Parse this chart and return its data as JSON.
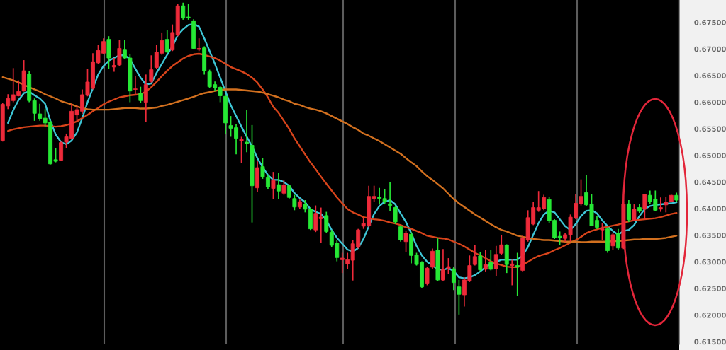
{
  "chart_data": {
    "type": "candlestick",
    "categories": [
      null,
      null,
      null,
      null,
      null,
      null,
      null,
      null,
      null,
      null,
      null,
      null,
      null,
      null,
      null,
      null,
      null,
      null,
      null,
      null,
      null,
      null,
      null,
      null,
      null,
      null,
      null,
      null,
      null,
      null,
      null,
      null,
      null,
      null,
      null,
      null,
      null,
      null,
      null,
      null,
      null,
      null,
      null,
      null,
      null,
      null,
      null,
      null,
      null,
      null,
      null,
      null,
      null,
      null,
      null,
      null,
      null,
      null,
      null,
      null,
      null,
      null,
      null,
      null,
      null,
      null,
      null,
      null,
      null,
      null,
      null,
      null,
      null,
      null,
      null,
      null,
      null,
      null,
      null,
      null,
      null,
      null,
      null,
      null,
      null,
      null,
      null,
      null,
      null,
      null,
      null,
      null,
      null,
      null,
      null,
      null,
      null,
      null,
      null,
      null,
      null,
      null,
      null,
      null,
      null,
      null,
      null,
      null,
      null,
      null,
      null,
      null,
      null,
      null,
      null,
      null,
      null,
      null,
      null,
      null,
      null,
      null,
      null,
      null,
      null,
      null,
      null,
      null
    ],
    "ohlc": [
      [
        0.6528,
        0.6598,
        0.6526,
        0.6596
      ],
      [
        0.6593,
        0.6615,
        0.6587,
        0.6607
      ],
      [
        0.6603,
        0.6664,
        0.66,
        0.6614
      ],
      [
        0.6612,
        0.6641,
        0.6611,
        0.662
      ],
      [
        0.6621,
        0.6679,
        0.662,
        0.6659
      ],
      [
        0.6653,
        0.6659,
        0.66,
        0.6603
      ],
      [
        0.6603,
        0.6607,
        0.6565,
        0.6579
      ],
      [
        0.6578,
        0.6597,
        0.6565,
        0.6569
      ],
      [
        0.657,
        0.6587,
        0.6554,
        0.6561
      ],
      [
        0.6563,
        0.6565,
        0.6483,
        0.6484
      ],
      [
        0.6492,
        0.6513,
        0.6487,
        0.6489
      ],
      [
        0.6491,
        0.6526,
        0.6489,
        0.6524
      ],
      [
        0.6525,
        0.6541,
        0.6513,
        0.6535
      ],
      [
        0.6532,
        0.6597,
        0.653,
        0.6583
      ],
      [
        0.6576,
        0.6594,
        0.6565,
        0.6586
      ],
      [
        0.6583,
        0.6624,
        0.6578,
        0.6614
      ],
      [
        0.6613,
        0.6663,
        0.6611,
        0.6638
      ],
      [
        0.6626,
        0.6692,
        0.6624,
        0.6676
      ],
      [
        0.6674,
        0.6707,
        0.6672,
        0.6697
      ],
      [
        0.6692,
        0.672,
        0.6691,
        0.6714
      ],
      [
        0.6718,
        0.6724,
        0.6663,
        0.6683
      ],
      [
        0.6666,
        0.6683,
        0.6657,
        0.6669
      ],
      [
        0.667,
        0.6717,
        0.6668,
        0.6701
      ],
      [
        0.6698,
        0.6717,
        0.6681,
        0.6683
      ],
      [
        0.6683,
        0.669,
        0.66,
        0.6621
      ],
      [
        0.6624,
        0.665,
        0.6615,
        0.6625
      ],
      [
        0.6617,
        0.6629,
        0.6598,
        0.6603
      ],
      [
        0.66,
        0.6652,
        0.6563,
        0.6633
      ],
      [
        0.6639,
        0.6688,
        0.6637,
        0.6661
      ],
      [
        0.6665,
        0.6708,
        0.6663,
        0.6694
      ],
      [
        0.6692,
        0.6731,
        0.6689,
        0.6716
      ],
      [
        0.6718,
        0.6736,
        0.6692,
        0.6694
      ],
      [
        0.6698,
        0.6746,
        0.6696,
        0.6731
      ],
      [
        0.6726,
        0.6785,
        0.6724,
        0.6781
      ],
      [
        0.6781,
        0.6787,
        0.6755,
        0.6758
      ],
      [
        0.676,
        0.6785,
        0.6755,
        0.6759
      ],
      [
        0.6753,
        0.6756,
        0.6699,
        0.6701
      ],
      [
        0.6699,
        0.672,
        0.6696,
        0.6701
      ],
      [
        0.6702,
        0.6705,
        0.6652,
        0.6659
      ],
      [
        0.6657,
        0.6661,
        0.6626,
        0.6629
      ],
      [
        0.6633,
        0.6639,
        0.6622,
        0.6627
      ],
      [
        0.6628,
        0.6631,
        0.66,
        0.6612
      ],
      [
        0.6611,
        0.6613,
        0.654,
        0.6561
      ],
      [
        0.6556,
        0.6574,
        0.6535,
        0.6551
      ],
      [
        0.6552,
        0.6559,
        0.6502,
        0.6532
      ],
      [
        0.6527,
        0.6535,
        0.6486,
        0.653
      ],
      [
        0.6525,
        0.6585,
        0.6506,
        0.6522
      ],
      [
        0.6519,
        0.6557,
        0.6374,
        0.6443
      ],
      [
        0.6439,
        0.6489,
        0.6431,
        0.6477
      ],
      [
        0.6479,
        0.6495,
        0.6456,
        0.646
      ],
      [
        0.6458,
        0.6463,
        0.6437,
        0.6441
      ],
      [
        0.6438,
        0.6469,
        0.6418,
        0.6453
      ],
      [
        0.6445,
        0.6467,
        0.6418,
        0.6433
      ],
      [
        0.6429,
        0.6454,
        0.6426,
        0.6444
      ],
      [
        0.6443,
        0.6445,
        0.6419,
        0.6421
      ],
      [
        0.6419,
        0.6426,
        0.6397,
        0.6403
      ],
      [
        0.6403,
        0.6417,
        0.6399,
        0.6413
      ],
      [
        0.6408,
        0.6416,
        0.6393,
        0.6399
      ],
      [
        0.6399,
        0.6402,
        0.636,
        0.6362
      ],
      [
        0.636,
        0.6406,
        0.6356,
        0.6391
      ],
      [
        0.6381,
        0.6402,
        0.6336,
        0.6384
      ],
      [
        0.6387,
        0.6394,
        0.6354,
        0.6357
      ],
      [
        0.6356,
        0.636,
        0.6328,
        0.6331
      ],
      [
        0.6335,
        0.6341,
        0.6301,
        0.6308
      ],
      [
        0.6304,
        0.6317,
        0.6279,
        0.6307
      ],
      [
        0.6296,
        0.6317,
        0.6286,
        0.6304
      ],
      [
        0.6303,
        0.6341,
        0.6265,
        0.6334
      ],
      [
        0.6328,
        0.6362,
        0.6325,
        0.636
      ],
      [
        0.6367,
        0.6383,
        0.6362,
        0.6372
      ],
      [
        0.6368,
        0.6443,
        0.6365,
        0.6423
      ],
      [
        0.6419,
        0.6443,
        0.6413,
        0.6423
      ],
      [
        0.6422,
        0.6439,
        0.6408,
        0.6419
      ],
      [
        0.6419,
        0.6437,
        0.6408,
        0.6413
      ],
      [
        0.6409,
        0.645,
        0.6395,
        0.6406
      ],
      [
        0.6402,
        0.6404,
        0.6371,
        0.6375
      ],
      [
        0.6366,
        0.6369,
        0.6338,
        0.6341
      ],
      [
        0.6338,
        0.6358,
        0.6319,
        0.6354
      ],
      [
        0.6352,
        0.6356,
        0.6297,
        0.6312
      ],
      [
        0.6313,
        0.6317,
        0.6293,
        0.6295
      ],
      [
        0.6299,
        0.6301,
        0.6251,
        0.6253
      ],
      [
        0.626,
        0.629,
        0.6256,
        0.6288
      ],
      [
        0.629,
        0.6325,
        0.6286,
        0.632
      ],
      [
        0.6322,
        0.6344,
        0.6264,
        0.6266
      ],
      [
        0.6266,
        0.6324,
        0.6264,
        0.6286
      ],
      [
        0.6288,
        0.6307,
        0.6277,
        0.6291
      ],
      [
        0.6287,
        0.629,
        0.6247,
        0.6261
      ],
      [
        0.6253,
        0.6266,
        0.6201,
        0.6239
      ],
      [
        0.6238,
        0.6271,
        0.6216,
        0.6266
      ],
      [
        0.6264,
        0.6312,
        0.6262,
        0.6293
      ],
      [
        0.6295,
        0.6332,
        0.6293,
        0.631
      ],
      [
        0.6311,
        0.6319,
        0.6283,
        0.6285
      ],
      [
        0.6286,
        0.6323,
        0.6282,
        0.6295
      ],
      [
        0.6299,
        0.6322,
        0.6284,
        0.6286
      ],
      [
        0.6287,
        0.633,
        0.6273,
        0.6314
      ],
      [
        0.6316,
        0.6351,
        0.6313,
        0.6332
      ],
      [
        0.6331,
        0.6333,
        0.6279,
        0.6295
      ],
      [
        0.6293,
        0.6304,
        0.6256,
        0.6296
      ],
      [
        0.6293,
        0.6317,
        0.6236,
        0.629
      ],
      [
        0.6284,
        0.6349,
        0.6282,
        0.6345
      ],
      [
        0.6341,
        0.6397,
        0.6338,
        0.6383
      ],
      [
        0.6371,
        0.6413,
        0.6369,
        0.6402
      ],
      [
        0.6397,
        0.6433,
        0.6394,
        0.6402
      ],
      [
        0.64,
        0.6426,
        0.6397,
        0.6421
      ],
      [
        0.6417,
        0.6422,
        0.6373,
        0.6377
      ],
      [
        0.6378,
        0.638,
        0.6343,
        0.6345
      ],
      [
        0.6348,
        0.6357,
        0.6332,
        0.6345
      ],
      [
        0.6344,
        0.6354,
        0.6338,
        0.6351
      ],
      [
        0.6351,
        0.6389,
        0.6338,
        0.6384
      ],
      [
        0.6382,
        0.6428,
        0.638,
        0.641
      ],
      [
        0.6409,
        0.6455,
        0.6406,
        0.6423
      ],
      [
        0.643,
        0.6463,
        0.6404,
        0.6407
      ],
      [
        0.6408,
        0.6428,
        0.6367,
        0.6368
      ],
      [
        0.6378,
        0.6386,
        0.6362,
        0.6365
      ],
      [
        0.636,
        0.6373,
        0.6341,
        0.6362
      ],
      [
        0.6362,
        0.6365,
        0.6317,
        0.6321
      ],
      [
        0.633,
        0.6354,
        0.6323,
        0.6351
      ],
      [
        0.6354,
        0.6362,
        0.6323,
        0.6326
      ],
      [
        0.6326,
        0.6412,
        0.6324,
        0.6408
      ],
      [
        0.6409,
        0.6416,
        0.6375,
        0.6379
      ],
      [
        0.6379,
        0.6408,
        0.6377,
        0.6399
      ],
      [
        0.6402,
        0.6409,
        0.6392,
        0.6395
      ],
      [
        0.6399,
        0.6428,
        0.638,
        0.6427
      ],
      [
        0.6425,
        0.6434,
        0.6408,
        0.6413
      ],
      [
        0.6418,
        0.6434,
        0.6395,
        0.6397
      ],
      [
        0.6399,
        0.6421,
        0.6394,
        0.6402
      ],
      [
        0.6407,
        0.6422,
        0.6393,
        0.6412
      ],
      [
        0.6413,
        0.6426,
        0.6413,
        0.6425
      ],
      [
        0.6425,
        0.643,
        0.6413,
        0.6416
      ]
    ],
    "colors": [
      "#ee2a3a",
      "#ee2a3a",
      "#ee2a3a",
      "#ee2a3a",
      "#ee2a3a",
      "#26e835",
      "#26e835",
      "#26e835",
      "#26e835",
      "#26e835",
      "#26e835",
      "#ee2a3a",
      "#ee2a3a",
      "#ee2a3a",
      "#ee2a3a",
      "#ee2a3a",
      "#ee2a3a",
      "#ee2a3a",
      "#ee2a3a",
      "#ee2a3a",
      "#26e835",
      "#ee2a3a",
      "#ee2a3a",
      "#26e835",
      "#26e835",
      "#ee2a3a",
      "#26e835",
      "#ee2a3a",
      "#ee2a3a",
      "#ee2a3a",
      "#ee2a3a",
      "#26e835",
      "#ee2a3a",
      "#ee2a3a",
      "#26e835",
      "#26e835",
      "#26e835",
      "#ee2a3a",
      "#26e835",
      "#26e835",
      "#26e835",
      "#26e835",
      "#26e835",
      "#26e835",
      "#26e835",
      "#ee2a3a",
      "#26e835",
      "#26e835",
      "#ee2a3a",
      "#26e835",
      "#26e835",
      "#ee2a3a",
      "#26e835",
      "#ee2a3a",
      "#26e835",
      "#26e835",
      "#ee2a3a",
      "#26e835",
      "#26e835",
      "#ee2a3a",
      "#ee2a3a",
      "#26e835",
      "#26e835",
      "#26e835",
      "#ee2a3a",
      "#ee2a3a",
      "#ee2a3a",
      "#ee2a3a",
      "#ee2a3a",
      "#ee2a3a",
      "#ee2a3a",
      "#26e835",
      "#26e835",
      "#26e835",
      "#26e835",
      "#26e835",
      "#ee2a3a",
      "#26e835",
      "#26e835",
      "#26e835",
      "#ee2a3a",
      "#ee2a3a",
      "#26e835",
      "#ee2a3a",
      "#ee2a3a",
      "#26e835",
      "#26e835",
      "#ee2a3a",
      "#ee2a3a",
      "#ee2a3a",
      "#26e835",
      "#ee2a3a",
      "#26e835",
      "#ee2a3a",
      "#ee2a3a",
      "#26e835",
      "#ee2a3a",
      "#26e835",
      "#ee2a3a",
      "#ee2a3a",
      "#ee2a3a",
      "#ee2a3a",
      "#ee2a3a",
      "#26e835",
      "#26e835",
      "#26e835",
      "#ee2a3a",
      "#ee2a3a",
      "#ee2a3a",
      "#ee2a3a",
      "#26e835",
      "#26e835",
      "#26e835",
      "#ee2a3a",
      "#26e835",
      "#ee2a3a",
      "#26e835",
      "#ee2a3a",
      "#26e835",
      "#ee2a3a",
      "#26e835",
      "#ee2a3a",
      "#26e835",
      "#26e835",
      "#ee2a3a",
      "#ee2a3a",
      "#ee2a3a",
      "#26e835"
    ],
    "series": [
      {
        "type": "line",
        "color": "#3ec6d6",
        "values": [
          null,
          0.6561,
          0.6585,
          0.6604,
          0.6617,
          0.662,
          0.6613,
          0.6607,
          0.6597,
          0.6565,
          0.6539,
          0.6525,
          0.6521,
          0.6528,
          0.6543,
          0.657,
          0.66,
          0.6626,
          0.6652,
          0.6668,
          0.6678,
          0.6683,
          0.6688,
          0.6688,
          0.6681,
          0.6663,
          0.6646,
          0.6633,
          0.6635,
          0.6655,
          0.6672,
          0.6689,
          0.6705,
          0.6726,
          0.6737,
          0.6745,
          0.6747,
          0.6742,
          0.672,
          0.6696,
          0.6672,
          0.6646,
          0.662,
          0.6594,
          0.6574,
          0.6554,
          0.6535,
          0.6517,
          0.6495,
          0.6478,
          0.6463,
          0.6454,
          0.6454,
          0.645,
          0.6443,
          0.6429,
          0.642,
          0.6412,
          0.6399,
          0.6394,
          0.639,
          0.6378,
          0.636,
          0.6345,
          0.6334,
          0.6323,
          0.6319,
          0.6326,
          0.6343,
          0.6367,
          0.639,
          0.6405,
          0.6413,
          0.6416,
          0.6408,
          0.6391,
          0.6375,
          0.6354,
          0.633,
          0.6312,
          0.63,
          0.6293,
          0.6286,
          0.6285,
          0.6288,
          0.6283,
          0.6271,
          0.6269,
          0.6271,
          0.6275,
          0.6282,
          0.629,
          0.6296,
          0.63,
          0.6304,
          0.6304,
          0.6304,
          0.6304,
          0.6312,
          0.6328,
          0.6351,
          0.6373,
          0.6389,
          0.6396,
          0.6393,
          0.638,
          0.6367,
          0.636,
          0.6371,
          0.6386,
          0.6396,
          0.6397,
          0.6391,
          0.6378,
          0.6367,
          0.6358,
          0.6351,
          0.6358,
          0.636,
          0.6369,
          0.6386,
          0.6399,
          0.6405,
          0.6407,
          0.6408,
          0.6409,
          0.641,
          0.6412
        ]
      },
      {
        "type": "line",
        "color": "#d8441b",
        "values": [
          null,
          0.6546,
          0.6549,
          0.6551,
          0.6553,
          0.6554,
          0.6555,
          0.6556,
          0.6556,
          0.6555,
          0.6554,
          0.6555,
          0.6557,
          0.656,
          0.6564,
          0.657,
          0.6576,
          0.6583,
          0.6589,
          0.6596,
          0.6601,
          0.6605,
          0.6609,
          0.6611,
          0.6613,
          0.6614,
          0.6615,
          0.662,
          0.6628,
          0.6638,
          0.6649,
          0.6659,
          0.6668,
          0.6675,
          0.6682,
          0.6687,
          0.669,
          0.6691,
          0.6689,
          0.6686,
          0.6683,
          0.6678,
          0.6672,
          0.6666,
          0.6662,
          0.6658,
          0.6653,
          0.6646,
          0.6637,
          0.6624,
          0.6609,
          0.6591,
          0.658,
          0.6565,
          0.655,
          0.6532,
          0.6517,
          0.6502,
          0.6487,
          0.6474,
          0.646,
          0.6447,
          0.6434,
          0.6421,
          0.641,
          0.6399,
          0.6393,
          0.6389,
          0.6384,
          0.6382,
          0.638,
          0.6379,
          0.6377,
          0.6374,
          0.6372,
          0.6369,
          0.6365,
          0.6362,
          0.6358,
          0.6354,
          0.6349,
          0.6347,
          0.6345,
          0.6344,
          0.6342,
          0.6338,
          0.6334,
          0.6329,
          0.6323,
          0.6317,
          0.6312,
          0.6307,
          0.6301,
          0.6297,
          0.6294,
          0.6291,
          0.629,
          0.629,
          0.6295,
          0.63,
          0.6306,
          0.6311,
          0.6314,
          0.6317,
          0.6322,
          0.6326,
          0.6331,
          0.6336,
          0.6341,
          0.6347,
          0.6354,
          0.6358,
          0.6361,
          0.6364,
          0.6366,
          0.6368,
          0.637,
          0.6373,
          0.6376,
          0.6378,
          0.6379,
          0.638,
          0.6381,
          0.6382,
          0.6384,
          0.6387,
          0.639,
          0.6392
        ]
      },
      {
        "type": "line",
        "color": "#d2701f",
        "values": [
          0.6647,
          0.6644,
          0.6641,
          0.6637,
          0.6633,
          0.6628,
          0.6624,
          0.662,
          0.6615,
          0.6611,
          0.6607,
          0.6602,
          0.6599,
          0.6596,
          0.6592,
          0.6589,
          0.6587,
          0.6586,
          0.6586,
          0.6586,
          0.6586,
          0.6587,
          0.6588,
          0.6589,
          0.6589,
          0.6589,
          0.6588,
          0.6588,
          0.6589,
          0.659,
          0.6593,
          0.6595,
          0.6598,
          0.6601,
          0.6604,
          0.6607,
          0.661,
          0.6614,
          0.6617,
          0.6619,
          0.6621,
          0.6623,
          0.6624,
          0.6624,
          0.6624,
          0.6623,
          0.6622,
          0.6621,
          0.662,
          0.6618,
          0.6615,
          0.6612,
          0.6609,
          0.6605,
          0.6602,
          0.6597,
          0.6595,
          0.6591,
          0.6588,
          0.6586,
          0.6583,
          0.6579,
          0.6574,
          0.6569,
          0.6564,
          0.6559,
          0.6553,
          0.6548,
          0.6541,
          0.6537,
          0.6532,
          0.6527,
          0.6521,
          0.6515,
          0.6509,
          0.6503,
          0.6495,
          0.6487,
          0.648,
          0.647,
          0.6461,
          0.6454,
          0.6446,
          0.6438,
          0.6428,
          0.6418,
          0.641,
          0.6403,
          0.6396,
          0.6389,
          0.6383,
          0.6377,
          0.6371,
          0.6365,
          0.636,
          0.6357,
          0.6353,
          0.6349,
          0.6347,
          0.6345,
          0.6343,
          0.6342,
          0.6341,
          0.6341,
          0.634,
          0.6339,
          0.6338,
          0.6338,
          0.6338,
          0.6337,
          0.6337,
          0.6338,
          0.6338,
          0.6338,
          0.6338,
          0.6339,
          0.6339,
          0.634,
          0.6341,
          0.6342,
          0.6342,
          0.6343,
          0.6343,
          0.6343,
          0.6344,
          0.6345,
          0.6347,
          0.6349
        ]
      }
    ],
    "ylim": [
      0.6145,
      0.6792
    ],
    "yticks": [
      {
        "value": 0.615,
        "label": "0.61500"
      },
      {
        "value": 0.62,
        "label": "0.62000"
      },
      {
        "value": 0.625,
        "label": "0.62500"
      },
      {
        "value": 0.63,
        "label": "0.63000"
      },
      {
        "value": 0.635,
        "label": "0.63500"
      },
      {
        "value": 0.64,
        "label": "0.64000"
      },
      {
        "value": 0.645,
        "label": "0.64500"
      },
      {
        "value": 0.65,
        "label": "0.65000"
      },
      {
        "value": 0.655,
        "label": "0.65500"
      },
      {
        "value": 0.66,
        "label": "0.66000"
      },
      {
        "value": 0.665,
        "label": "0.66500"
      },
      {
        "value": 0.67,
        "label": "0.67000"
      },
      {
        "value": 0.675,
        "label": "0.67500"
      }
    ],
    "tick_labels": "y"
  }
}
